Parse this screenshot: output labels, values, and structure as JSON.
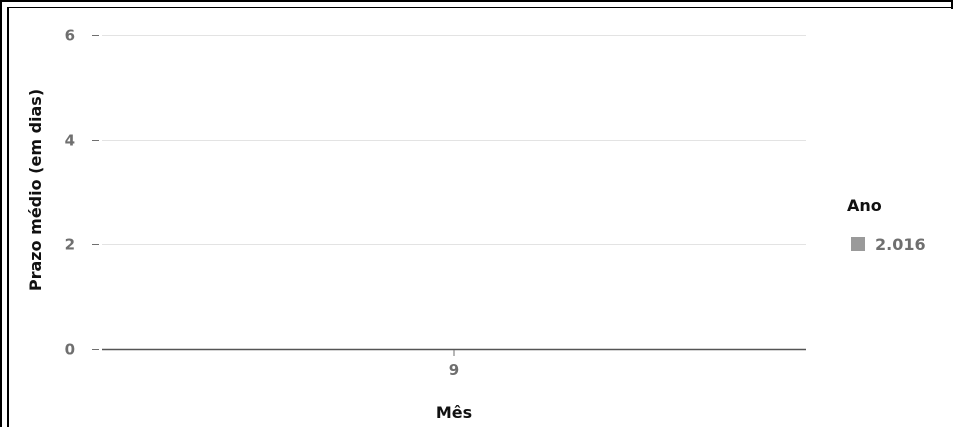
{
  "chart_data": {
    "type": "bar",
    "categories": [
      "9"
    ],
    "series": [
      {
        "name": "2.016",
        "values": [
          0
        ],
        "color": "#9a9a9a"
      }
    ],
    "xlabel": "Mês",
    "ylabel": "Prazo médio (em dias)",
    "ylim": [
      0,
      6
    ],
    "yticks": [
      0,
      2,
      4,
      6
    ],
    "grid": true,
    "legend": {
      "title": "Ano",
      "position": "right"
    }
  }
}
